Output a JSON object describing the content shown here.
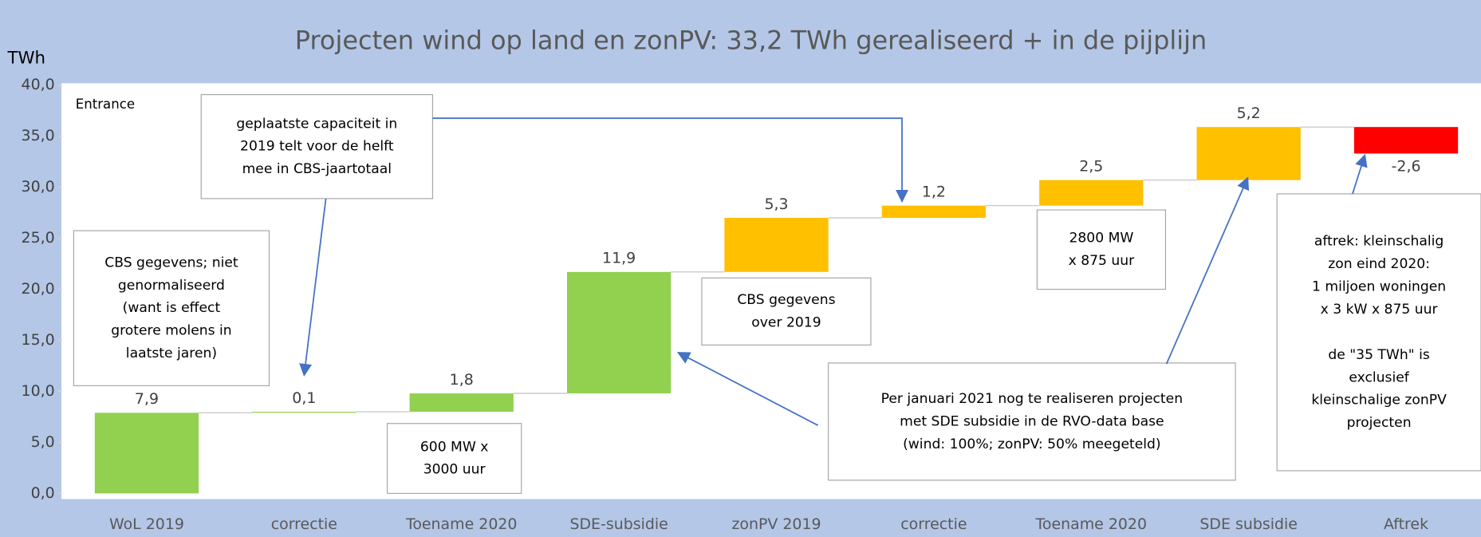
{
  "chart_data": {
    "type": "waterfall",
    "title": "Projecten wind op land en zonPV: 33,2 TWh gerealiseerd + in de pijplijn",
    "y_unit": "TWh",
    "inner_label": "Entrance",
    "categories": [
      "WoL 2019",
      "correctie",
      "Toename 2020",
      "SDE-subsidie",
      "zonPV 2019",
      "correctie",
      "Toename 2020",
      "SDE subsidie",
      "Aftrek"
    ],
    "values": [
      7.9,
      0.1,
      1.8,
      11.9,
      5.3,
      1.2,
      2.5,
      5.2,
      -2.6
    ],
    "value_labels": [
      "7,9",
      "0,1",
      "1,8",
      "11,9",
      "5,3",
      "1,2",
      "2,5",
      "5,2",
      "-2,6"
    ],
    "colors": [
      "#92d050",
      "#92d050",
      "#92d050",
      "#92d050",
      "#ffc000",
      "#ffc000",
      "#ffc000",
      "#ffc000",
      "#ff0000"
    ],
    "ylim": [
      0,
      40
    ],
    "yticks": [
      {
        "value": 0,
        "label": "0,0"
      },
      {
        "value": 5,
        "label": "5,0"
      },
      {
        "value": 10,
        "label": "10,0"
      },
      {
        "value": 15,
        "label": "15,0"
      },
      {
        "value": 20,
        "label": "20,0"
      },
      {
        "value": 25,
        "label": "25,0"
      },
      {
        "value": 30,
        "label": "30,0"
      },
      {
        "value": 35,
        "label": "35,0"
      },
      {
        "value": 40,
        "label": "40,0"
      }
    ],
    "annotations": [
      {
        "paragraphs": [
          [
            "geplaatste capaciteit in",
            "2019 telt voor de helft",
            "mee in CBS-jaartotaal"
          ]
        ]
      },
      {
        "paragraphs": [
          [
            "CBS gegevens; niet",
            "genormaliseerd",
            "(want is effect",
            "grotere molens in",
            "laatste jaren)"
          ]
        ]
      },
      {
        "paragraphs": [
          [
            "600 MW x",
            "3000 uur"
          ]
        ]
      },
      {
        "paragraphs": [
          [
            "CBS gegevens",
            "over 2019"
          ]
        ]
      },
      {
        "paragraphs": [
          [
            "2800 MW",
            "x 875 uur"
          ]
        ]
      },
      {
        "paragraphs": [
          [
            "Per januari 2021 nog te realiseren projecten",
            "met SDE subsidie in de RVO-data base",
            "(wind: 100%; zonPV: 50% meegeteld)"
          ]
        ]
      },
      {
        "paragraphs": [
          [
            "aftrek: kleinschalig",
            "zon eind 2020:",
            "1 miljoen woningen",
            "x 3 kW x 875 uur"
          ],
          [
            "de \"35 TWh\" is",
            "exclusief",
            "kleinschalige zonPV",
            "projecten"
          ]
        ]
      }
    ]
  }
}
